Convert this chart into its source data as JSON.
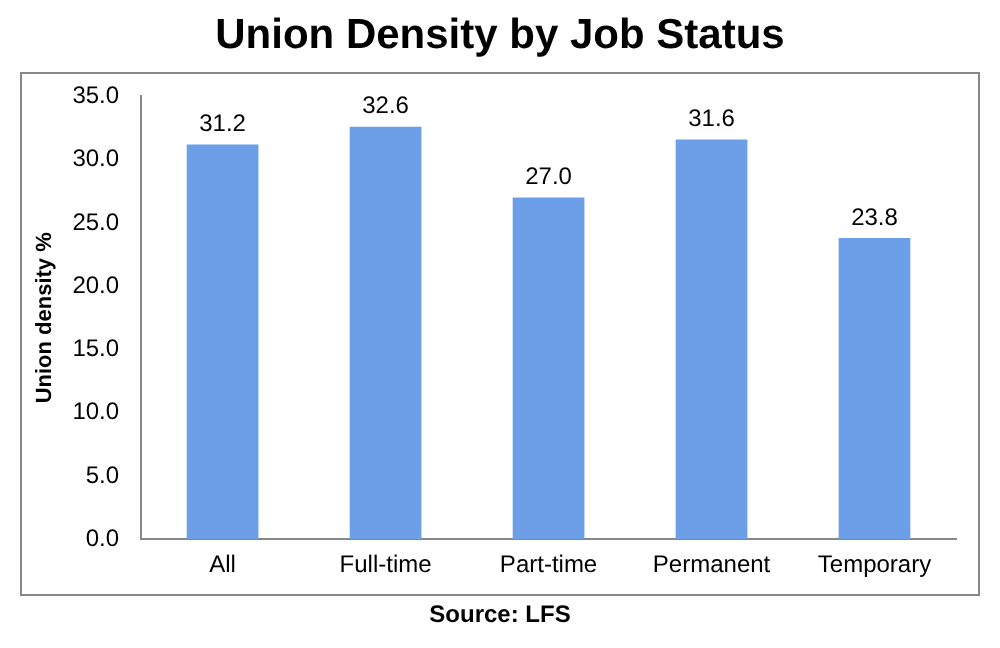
{
  "chart_data": {
    "type": "bar",
    "title": "Union Density by Job Status",
    "ylabel": "Union density %",
    "categories": [
      "All",
      "Full-time",
      "Part-time",
      "Permanent",
      "Temporary"
    ],
    "values": [
      31.2,
      32.6,
      27.0,
      31.6,
      23.8
    ],
    "value_labels": [
      "31.2",
      "32.6",
      "27.0",
      "31.6",
      "23.8"
    ],
    "color": "#6d9ee8",
    "ylim": [
      0,
      35
    ],
    "yticks": [
      {
        "value": 0,
        "label": "0.0"
      },
      {
        "value": 5,
        "label": "5.0"
      },
      {
        "value": 10,
        "label": "10.0"
      },
      {
        "value": 15,
        "label": "15.0"
      },
      {
        "value": 20,
        "label": "20.0"
      },
      {
        "value": 25,
        "label": "25.0"
      },
      {
        "value": 30,
        "label": "30.0"
      },
      {
        "value": 35,
        "label": "35.0"
      }
    ],
    "grid": false,
    "legend": false,
    "annotations": [
      "Source: LFS"
    ]
  }
}
